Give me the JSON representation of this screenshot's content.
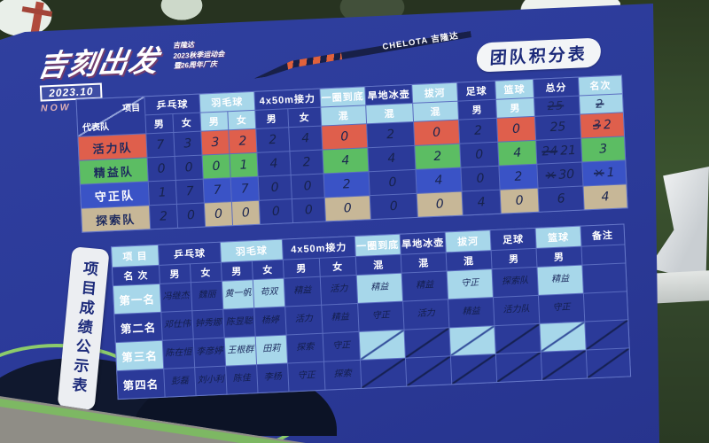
{
  "scene": {
    "board_color": "#2b3a99",
    "highlight_color": "#a7d7ea",
    "grid_line_color": "#5a6cc0"
  },
  "header": {
    "logo_main": "吉刻出发",
    "logo_sub_lines": [
      "吉隆达",
      "2023秋季运动会",
      "暨26周年厂庆"
    ],
    "logo_date": "2023.10",
    "logo_slogan": "NOW IS THE BEST",
    "banner_text": "CHELOTA 吉隆达",
    "board_title": "团队积分表"
  },
  "score_table": {
    "corner_top": "项目",
    "corner_bottom": "代表队",
    "groups": [
      {
        "label": "乒乓球",
        "subs": [
          "男",
          "女"
        ],
        "light": false,
        "team": false
      },
      {
        "label": "羽毛球",
        "subs": [
          "男",
          "女"
        ],
        "light": true,
        "team": true
      },
      {
        "label": "4x50m接力",
        "subs": [
          "男",
          "女"
        ],
        "light": false,
        "team": false
      },
      {
        "label": "一圈到底",
        "subs": [
          "混"
        ],
        "light": true,
        "team": true
      },
      {
        "label": "旱地冰壶",
        "subs": [
          "混"
        ],
        "light": false,
        "sub_light": true,
        "team": false
      },
      {
        "label": "拔河",
        "subs": [
          "混"
        ],
        "light": true,
        "team": true
      },
      {
        "label": "足球",
        "subs": [
          "男"
        ],
        "light": false,
        "team": false
      },
      {
        "label": "篮球",
        "subs": [
          "男"
        ],
        "light": true,
        "team": true
      },
      {
        "label": "总分",
        "subs": [
          ""
        ],
        "light": false,
        "team": false,
        "sub_note": "25"
      },
      {
        "label": "名次",
        "subs": [
          ""
        ],
        "light": true,
        "team": true,
        "sub_note": "2"
      }
    ],
    "teams": [
      {
        "name": "活力队",
        "color": "#df5f4c",
        "label_text": "#1d2a5e",
        "scores": [
          "7",
          "3",
          "3",
          "2",
          "2",
          "4",
          "0",
          "2",
          "0",
          "2",
          "0"
        ],
        "total": "25",
        "total_crossed": "",
        "rank": "2",
        "rank_crossed": "3"
      },
      {
        "name": "精益队",
        "color": "#5cbd63",
        "label_text": "#1d2a5e",
        "scores": [
          "0",
          "0",
          "0",
          "1",
          "4",
          "2",
          "4",
          "4",
          "2",
          "0",
          "4"
        ],
        "total": "21",
        "total_crossed": "24",
        "rank": "3",
        "rank_crossed": ""
      },
      {
        "name": "守正队",
        "color": "#3a53c6",
        "label_text": "#ffffff",
        "scores": [
          "1",
          "7",
          "7",
          "7",
          "0",
          "0",
          "2",
          "0",
          "4",
          "0",
          "2"
        ],
        "total": "30",
        "total_crossed": "×",
        "rank": "1",
        "rank_crossed": "×"
      },
      {
        "name": "探索队",
        "color": "#c7b797",
        "label_text": "#1d2a5e",
        "scores": [
          "2",
          "0",
          "0",
          "0",
          "0",
          "0",
          "0",
          "0",
          "0",
          "4",
          "0"
        ],
        "total": "6",
        "total_crossed": "",
        "rank": "4",
        "rank_crossed": ""
      }
    ]
  },
  "results_table": {
    "ribbon_label": "项目成绩公示表",
    "corner_top": "项 目",
    "corner_bottom": "名 次",
    "groups": [
      {
        "label": "乒乓球",
        "subs": [
          "男",
          "女"
        ],
        "light": false
      },
      {
        "label": "羽毛球",
        "subs": [
          "男",
          "女"
        ],
        "light": true
      },
      {
        "label": "4x50m接力",
        "subs": [
          "男",
          "女"
        ],
        "light": false
      },
      {
        "label": "一圈到底",
        "subs": [
          "混"
        ],
        "light": true
      },
      {
        "label": "旱地冰壶",
        "subs": [
          "混"
        ],
        "light": false
      },
      {
        "label": "拔河",
        "subs": [
          "混"
        ],
        "light": true
      },
      {
        "label": "足球",
        "subs": [
          "男"
        ],
        "light": false
      },
      {
        "label": "篮球",
        "subs": [
          "男"
        ],
        "light": true
      },
      {
        "label": "备注",
        "subs": [
          ""
        ],
        "light": false
      }
    ],
    "rows": [
      {
        "label": "第一名",
        "cells": [
          "冯继杰",
          "魏丽",
          "黄一帆",
          "苟双",
          "精益",
          "活力",
          "精益",
          "精益",
          "守正",
          "探索队",
          "精益",
          ""
        ]
      },
      {
        "label": "第二名",
        "cells": [
          "邓仕伟",
          "钟秀娜",
          "陈昱聪",
          "杨婷",
          "活力",
          "精益",
          "守正",
          "活力",
          "精益",
          "活力队",
          "守正",
          ""
        ]
      },
      {
        "label": "第三名",
        "cells": [
          "陈在恒",
          "李彦婷",
          "王根群",
          "田莉",
          "探索",
          "守正",
          "/",
          "/",
          "/",
          "/",
          "/",
          "/"
        ]
      },
      {
        "label": "第四名",
        "cells": [
          "彭磊",
          "刘小利",
          "陈佳",
          "李杨",
          "守正",
          "探索",
          "/",
          "/",
          "/",
          "/",
          "/",
          "/"
        ]
      }
    ]
  }
}
